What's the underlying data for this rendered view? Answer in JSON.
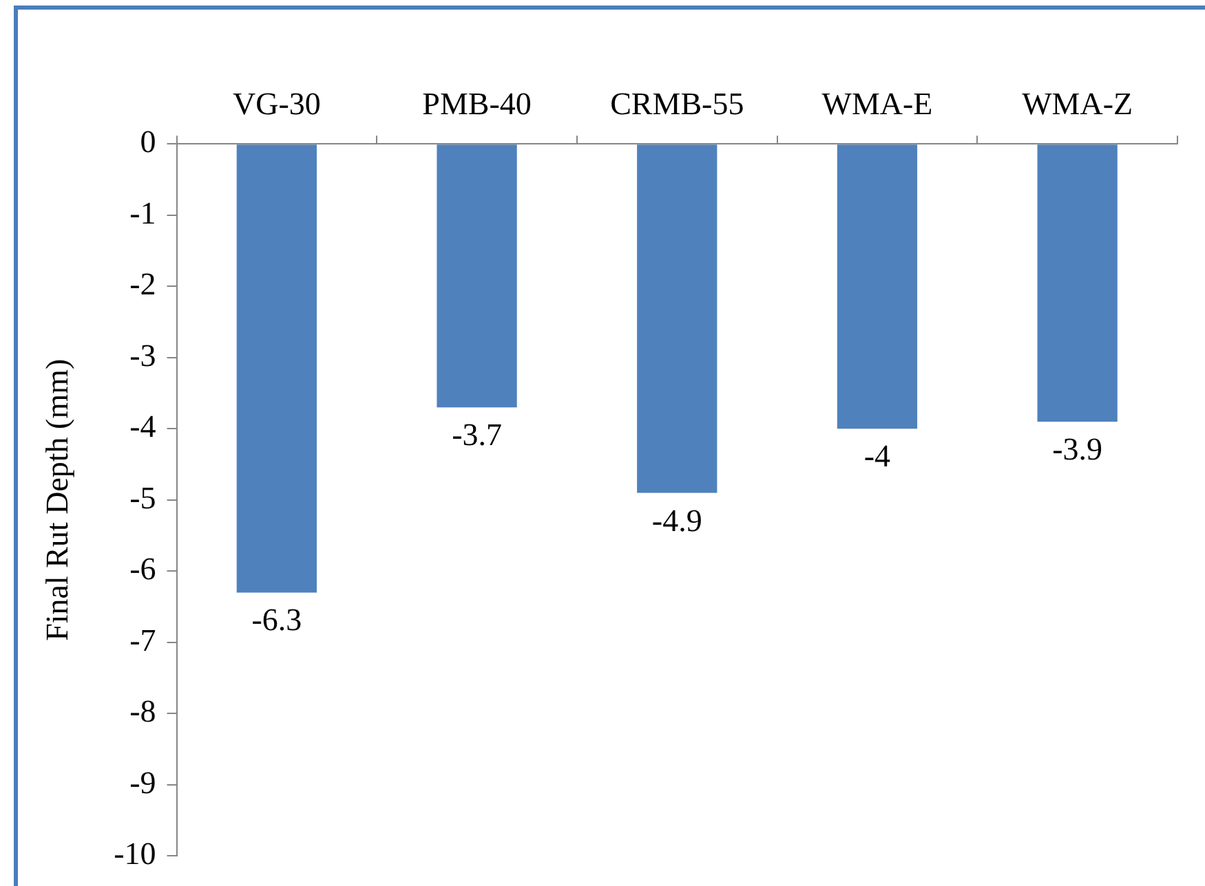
{
  "chart_data": {
    "type": "bar",
    "ylabel": "Final Rut Depth (mm)",
    "categories": [
      "VG-30",
      "PMB-40",
      "CRMB-55",
      "WMA-E",
      "WMA-Z"
    ],
    "values": [
      -6.3,
      -3.7,
      -4.9,
      -4,
      -3.9
    ],
    "color": "#4f81bd",
    "ylim": [
      -10,
      0
    ],
    "yticks": [
      0,
      -1,
      -2,
      -3,
      -4,
      -5,
      -6,
      -7,
      -8,
      -9,
      -10
    ],
    "grid": false,
    "data_labels": true,
    "legend": false
  }
}
